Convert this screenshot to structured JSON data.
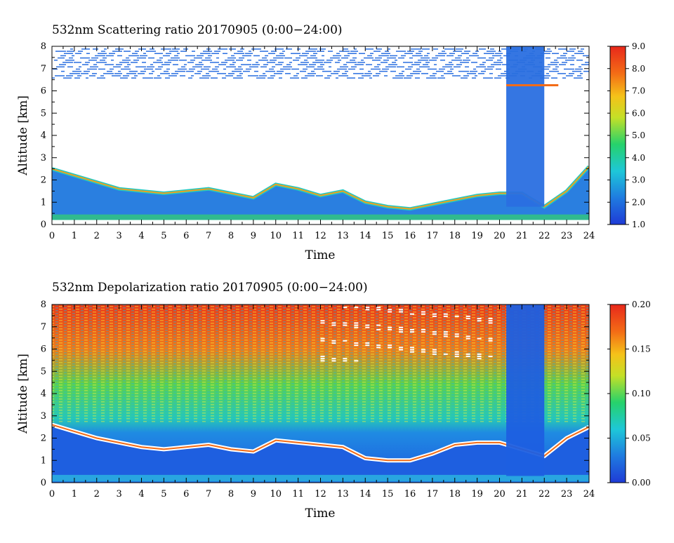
{
  "chart_data": [
    {
      "type": "heatmap",
      "title": "532nm Scattering ratio  20170905 (0:00−24:00)",
      "xlabel": "Time",
      "ylabel": "Altitude [km]",
      "xlim": [
        0,
        24
      ],
      "ylim": [
        0,
        8
      ],
      "xticks": [
        "0",
        "1",
        "2",
        "3",
        "4",
        "5",
        "6",
        "7",
        "8",
        "9",
        "10",
        "11",
        "12",
        "13",
        "14",
        "15",
        "16",
        "17",
        "18",
        "19",
        "20",
        "21",
        "22",
        "23",
        "24"
      ],
      "yticks": [
        "0",
        "1",
        "2",
        "3",
        "4",
        "5",
        "6",
        "7",
        "8"
      ],
      "colorbar": {
        "range": [
          1.0,
          9.0
        ],
        "ticks": [
          "1.0",
          "2.0",
          "3.0",
          "4.0",
          "5.0",
          "6.0",
          "7.0",
          "8.0",
          "9.0"
        ],
        "colormap": "blue-cyan-green-yellow-orange-red"
      },
      "boundary_layer_top_km": [
        [
          0,
          2.5
        ],
        [
          1,
          2.2
        ],
        [
          2,
          1.9
        ],
        [
          3,
          1.6
        ],
        [
          4,
          1.5
        ],
        [
          5,
          1.4
        ],
        [
          6,
          1.5
        ],
        [
          7,
          1.6
        ],
        [
          8,
          1.4
        ],
        [
          9,
          1.2
        ],
        [
          10,
          1.8
        ],
        [
          11,
          1.6
        ],
        [
          12,
          1.3
        ],
        [
          13,
          1.5
        ],
        [
          14,
          1.0
        ],
        [
          15,
          0.8
        ],
        [
          16,
          0.7
        ],
        [
          17,
          0.9
        ],
        [
          18,
          1.1
        ],
        [
          19,
          1.3
        ],
        [
          20,
          1.4
        ],
        [
          21,
          1.4
        ],
        [
          22,
          0.8
        ],
        [
          23,
          1.5
        ],
        [
          24,
          2.6
        ]
      ],
      "cloud_column": {
        "x_start": 20.3,
        "x_end": 22.0,
        "top_km": 8.0
      }
    },
    {
      "type": "heatmap",
      "title": "532nm Depolarization ratio  20170905 (0:00−24:00)",
      "xlabel": "Time",
      "ylabel": "Altitude [km]",
      "xlim": [
        0,
        24
      ],
      "ylim": [
        0,
        8
      ],
      "xticks": [
        "0",
        "1",
        "2",
        "3",
        "4",
        "5",
        "6",
        "7",
        "8",
        "9",
        "10",
        "11",
        "12",
        "13",
        "14",
        "15",
        "16",
        "17",
        "18",
        "19",
        "20",
        "21",
        "22",
        "23",
        "24"
      ],
      "yticks": [
        "0",
        "1",
        "2",
        "3",
        "4",
        "5",
        "6",
        "7",
        "8"
      ],
      "colorbar": {
        "range": [
          0.0,
          0.2
        ],
        "ticks": [
          "0.00",
          "0.05",
          "0.10",
          "0.15",
          "0.20"
        ],
        "colormap": "blue-cyan-green-yellow-orange-red"
      },
      "boundary_layer_top_km": [
        [
          0,
          2.6
        ],
        [
          1,
          2.3
        ],
        [
          2,
          2.0
        ],
        [
          3,
          1.8
        ],
        [
          4,
          1.6
        ],
        [
          5,
          1.5
        ],
        [
          6,
          1.6
        ],
        [
          7,
          1.7
        ],
        [
          8,
          1.5
        ],
        [
          9,
          1.4
        ],
        [
          10,
          1.9
        ],
        [
          11,
          1.8
        ],
        [
          12,
          1.7
        ],
        [
          13,
          1.6
        ],
        [
          14,
          1.1
        ],
        [
          15,
          1.0
        ],
        [
          16,
          1.0
        ],
        [
          17,
          1.3
        ],
        [
          18,
          1.7
        ],
        [
          19,
          1.8
        ],
        [
          20,
          1.8
        ],
        [
          21,
          1.5
        ],
        [
          22,
          1.2
        ],
        [
          23,
          2.0
        ],
        [
          24,
          2.5
        ]
      ],
      "cloud_column": {
        "x_start": 20.3,
        "x_end": 22.0,
        "top_km": 8.0
      }
    }
  ]
}
